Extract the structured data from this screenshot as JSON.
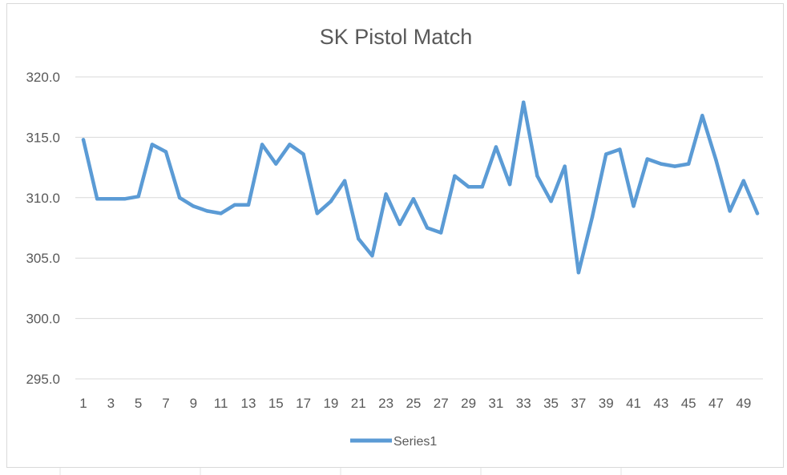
{
  "colors": {
    "series": "#5b9bd5",
    "grid": "#d9d9d9",
    "text": "#595959",
    "border": "#d9d9d9",
    "sheet_grid": "#e3e3e3"
  },
  "chart_data": {
    "type": "line",
    "title": "SK Pistol Match",
    "xlabel": "",
    "ylabel": "",
    "x": [
      1,
      2,
      3,
      4,
      5,
      6,
      7,
      8,
      9,
      10,
      11,
      12,
      13,
      14,
      15,
      16,
      17,
      18,
      19,
      20,
      21,
      22,
      23,
      24,
      25,
      26,
      27,
      28,
      29,
      30,
      31,
      32,
      33,
      34,
      35,
      36,
      37,
      38,
      39,
      40,
      41,
      42,
      43,
      44,
      45,
      46,
      47,
      48,
      49,
      50
    ],
    "x_tick_labels": [
      "1",
      "3",
      "5",
      "7",
      "9",
      "11",
      "13",
      "15",
      "17",
      "19",
      "21",
      "23",
      "25",
      "27",
      "29",
      "31",
      "33",
      "35",
      "37",
      "39",
      "41",
      "43",
      "45",
      "47",
      "49"
    ],
    "y_tick_labels": [
      "320.0",
      "315.0",
      "310.0",
      "305.0",
      "300.0",
      "295.0"
    ],
    "ylim": [
      295,
      320
    ],
    "grid": "horizontal",
    "legend_position": "bottom",
    "series": [
      {
        "name": "Series1",
        "values": [
          314.8,
          309.9,
          309.9,
          309.9,
          310.1,
          314.4,
          313.8,
          310.0,
          309.3,
          308.9,
          308.7,
          309.4,
          309.4,
          314.4,
          312.8,
          314.4,
          313.6,
          308.7,
          309.7,
          311.4,
          306.6,
          305.2,
          310.3,
          307.8,
          309.9,
          307.5,
          307.1,
          311.8,
          310.9,
          310.9,
          314.2,
          311.1,
          317.9,
          311.8,
          309.7,
          312.6,
          303.8,
          308.4,
          313.6,
          314.0,
          309.3,
          313.2,
          312.8,
          312.6,
          312.8,
          316.8,
          313.1,
          308.9,
          311.4,
          308.7
        ]
      }
    ]
  }
}
